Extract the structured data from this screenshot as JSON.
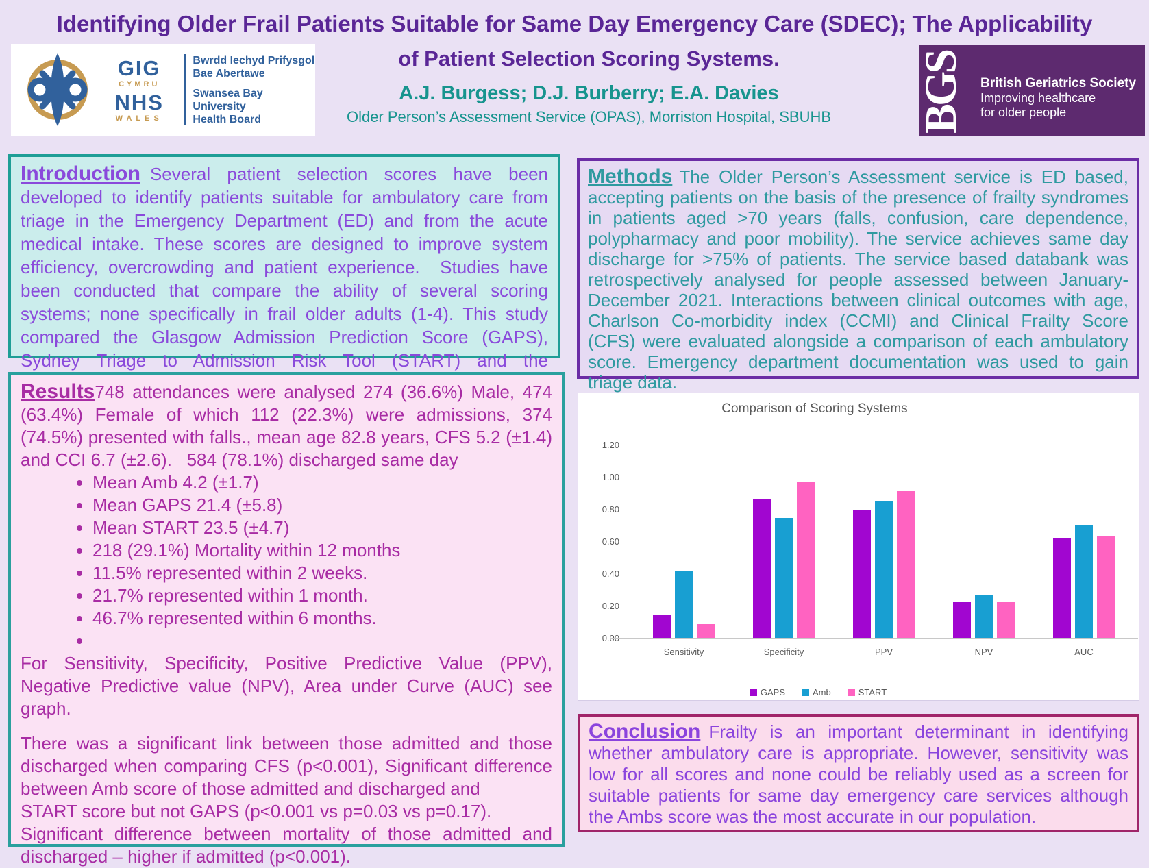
{
  "header": {
    "title_line1": "Identifying Older Frail Patients Suitable for Same Day Emergency Care (SDEC); The Applicability",
    "title_line2": "of Patient Selection Scoring Systems.",
    "authors": "A.J. Burgess; D.J. Burberry; E.A. Davies",
    "affiliation": "Older Person’s Assessment Service (OPAS), Morriston Hospital, SBUHB"
  },
  "nhs_logo": {
    "gig": "GIG",
    "cymru": "CYMRU",
    "nhs": "NHS",
    "wales": "WALES",
    "welsh_line1": "Bwrdd Iechyd Prifysgol",
    "welsh_line2": "Bae Abertawe",
    "english_line1": "Swansea Bay University",
    "english_line2": "Health Board"
  },
  "bgs_logo": {
    "acronym": "BGS",
    "name": "British Geriatrics Society",
    "tagline_line1": "Improving healthcare",
    "tagline_line2": "for older people"
  },
  "intro": {
    "heading": "Introduction",
    "text": "Several patient selection scores have been developed to identify patients suitable for ambulatory care from triage in the Emergency Department (ED) and from the acute medical intake. These scores are designed to improve system efficiency, overcrowding and patient experience.  Studies have been conducted that compare the ability of several scoring systems; none specifically in frail older adults (1-4). This study compared the Glasgow Admission Prediction Score (GAPS), Sydney Triage to Admission Risk Tool (START) and the Ambulatory Score (Amb)."
  },
  "methods": {
    "heading": "Methods",
    "text": "The Older Person’s Assessment service is ED based, accepting patients on the basis of the presence of frailty syndromes in patients aged >70 years (falls, confusion, care dependence, polypharmacy and poor mobility). The service achieves same day discharge for >75% of patients. The service based databank was retrospectively analysed for people assessed between January-December 2021. Interactions between clinical outcomes with age, Charlson Co-morbidity index (CCMI) and Clinical Frailty Score (CFS) were evaluated alongside a comparison of each ambulatory score. Emergency department documentation was used to gain triage data."
  },
  "results": {
    "heading": "Results",
    "intro_text": "748 attendances were analysed 274 (36.6%) Male, 474 (63.4%) Female of which 112 (22.3%) were admissions, 374 (74.5%) presented with falls., mean age 82.8 years, CFS 5.2 (±1.4) and CCI 6.7 (±2.6).   584 (78.1%) discharged same day",
    "bullets": [
      "Mean Amb 4.2 (±1.7)",
      "Mean GAPS 21.4 (±5.8)",
      "Mean START 23.5 (±4.7)",
      "218 (29.1%) Mortality within 12 months",
      "11.5% represented within 2 weeks.",
      "21.7% represented within 1 month.",
      "46.7% represented within 6 months.",
      ""
    ],
    "see_graph_text": "For Sensitivity, Specificity, Positive Predictive Value (PPV), Negative Predictive value (NPV), Area under Curve (AUC) see graph.",
    "para2_line1": "There was a significant link between those admitted and those discharged when comparing CFS (p<0.001), Significant difference between Amb score of those admitted and discharged and",
    "para2_line2": "START score but not GAPS (p<0.001 vs p=0.03 vs p=0.17).",
    "para2_line3": "Significant difference between mortality of those admitted and discharged – higher if admitted (p<0.001)."
  },
  "conclusion": {
    "heading": "Conclusion",
    "text": "Frailty is an important determinant in identifying whether ambulatory care is appropriate. However, sensitivity was low for all scores and none could be reliably used as a screen for suitable patients for same day emergency care services although the Ambs score was the most accurate in our population."
  },
  "chart_data": {
    "type": "bar",
    "title": "Comparison of Scoring Systems",
    "categories": [
      "Sensitivity",
      "Specificity",
      "PPV",
      "NPV",
      "AUC"
    ],
    "series": [
      {
        "name": "GAPS",
        "color": "#A106D0",
        "values": [
          0.15,
          0.87,
          0.8,
          0.23,
          0.62
        ]
      },
      {
        "name": "Amb",
        "color": "#189FD2",
        "values": [
          0.42,
          0.75,
          0.85,
          0.27,
          0.7
        ]
      },
      {
        "name": "START",
        "color": "#FF63C1",
        "values": [
          0.09,
          0.97,
          0.92,
          0.23,
          0.64
        ]
      }
    ],
    "xlabel": "",
    "ylabel": "",
    "ylim": [
      0,
      1.2
    ],
    "yticks": [
      "0.00",
      "0.20",
      "0.40",
      "0.60",
      "0.80",
      "1.00",
      "1.20"
    ],
    "grid": false,
    "legend_position": "bottom"
  },
  "colors": {
    "page_background": "#EAE1F4",
    "title_purple": "#5A2696",
    "author_teal": "#17948E",
    "intro_border_teal": "#1E9E96",
    "intro_text_violet": "#8A4ADB",
    "methods_border_purple": "#6B2CA5",
    "methods_text_teal": "#2F9AA0",
    "results_text_magenta": "#A82CA4",
    "conclusion_border_magenta": "#A02569",
    "bgs_purple": "#5D2A6F",
    "nhs_blue": "#31619C",
    "nhs_gold": "#C79B52"
  }
}
